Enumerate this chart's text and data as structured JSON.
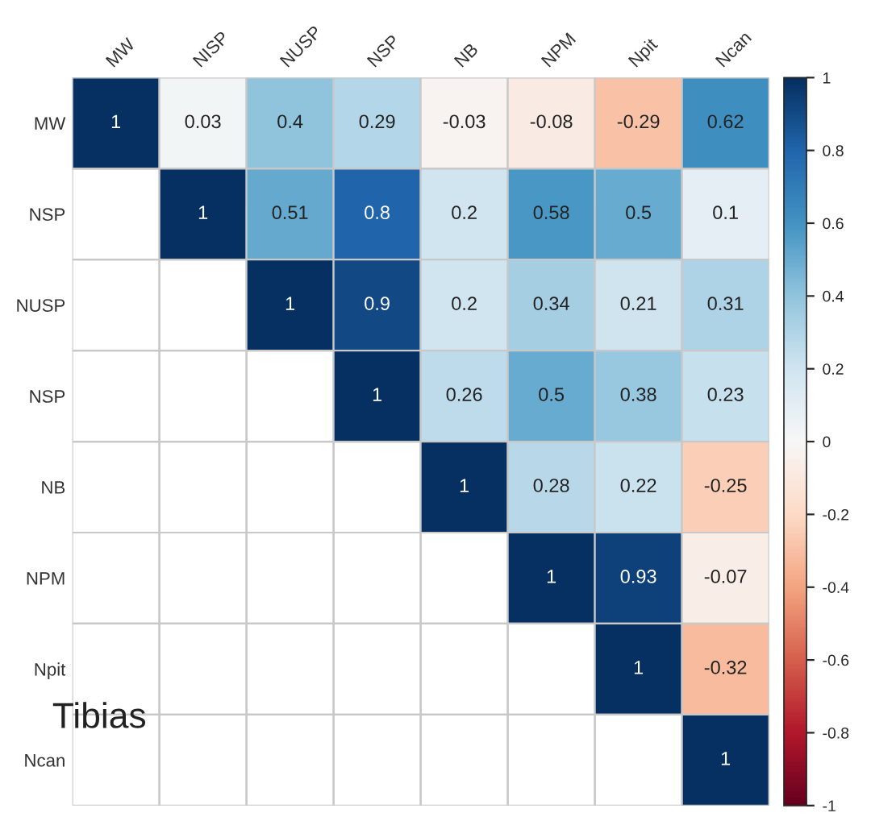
{
  "chart_data": {
    "type": "heatmap",
    "categories": [
      "MW",
      "NISP",
      "NUSP",
      "NSP",
      "NB",
      "NPM",
      "Npit",
      "Ncan"
    ],
    "y_categories": [
      "MW",
      "NSP",
      "NUSP",
      "NSP",
      "NB",
      "NPM",
      "Npit",
      "Ncan"
    ],
    "cells": [
      [
        1,
        0.03,
        0.4,
        0.29,
        -0.03,
        -0.08,
        -0.29,
        0.62
      ],
      [
        null,
        1,
        0.51,
        0.8,
        0.2,
        0.58,
        0.5,
        0.1
      ],
      [
        null,
        null,
        1,
        0.9,
        0.2,
        0.34,
        0.21,
        0.31
      ],
      [
        null,
        null,
        null,
        1,
        0.26,
        0.5,
        0.38,
        0.23
      ],
      [
        null,
        null,
        null,
        null,
        1,
        0.28,
        0.22,
        -0.25
      ],
      [
        null,
        null,
        null,
        null,
        null,
        1,
        0.93,
        -0.07
      ],
      [
        null,
        null,
        null,
        null,
        null,
        null,
        1,
        -0.32
      ],
      [
        null,
        null,
        null,
        null,
        null,
        null,
        null,
        1
      ]
    ],
    "data_labels": true,
    "clim": [
      -1,
      1
    ],
    "cticks": [
      -1,
      -0.8,
      -0.6,
      -0.4,
      -0.2,
      0,
      0.2,
      0.4,
      0.6,
      0.8,
      1
    ],
    "annotations": [
      "Tibias"
    ]
  }
}
